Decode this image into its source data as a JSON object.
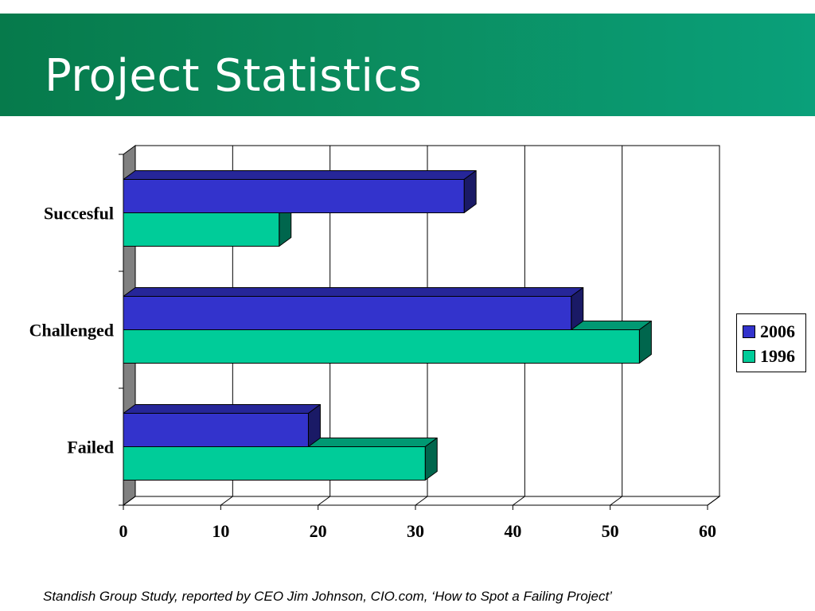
{
  "slide": {
    "title": "Project Statistics",
    "source": "Standish Group Study, reported by CEO Jim Johnson, CIO.com, ‘How to Spot a Failing Project’"
  },
  "colors": {
    "header": "#0b8c5e",
    "s2006_front": "#3333cc",
    "s2006_top": "#262699",
    "s2006_side": "#1a1a66",
    "s1996_front": "#00cc99",
    "s1996_top": "#009973",
    "s1996_side": "#00664d",
    "wall": "#808080"
  },
  "chart_data": {
    "type": "bar",
    "orientation": "horizontal",
    "title": "",
    "xlabel": "",
    "ylabel": "",
    "categories": [
      "Succesful",
      "Challenged",
      "Failed"
    ],
    "series": [
      {
        "name": "2006",
        "values": [
          35,
          46,
          19
        ]
      },
      {
        "name": "1996",
        "values": [
          16,
          53,
          31
        ]
      }
    ],
    "xlim": [
      0,
      60
    ],
    "xticks": [
      0,
      10,
      20,
      30,
      40,
      50,
      60
    ],
    "grid": true,
    "legend": {
      "position": "right",
      "entries": [
        "2006",
        "1996"
      ]
    }
  }
}
